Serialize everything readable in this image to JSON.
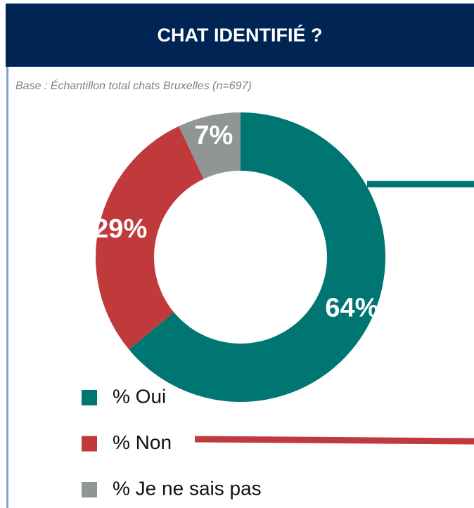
{
  "chart_data": {
    "type": "pie",
    "title": "CHAT IDENTIFIÉ ?",
    "subtitle": "Base : Échantillon total chats Bruxelles (n=697)",
    "categories": [
      "% Oui",
      "% Non",
      "% Je ne sais pas"
    ],
    "values": [
      64,
      29,
      7
    ],
    "value_labels": [
      "64%",
      "29%",
      "7%"
    ],
    "colors": [
      "#007672",
      "#c0393b",
      "#919695"
    ],
    "donut": true
  }
}
